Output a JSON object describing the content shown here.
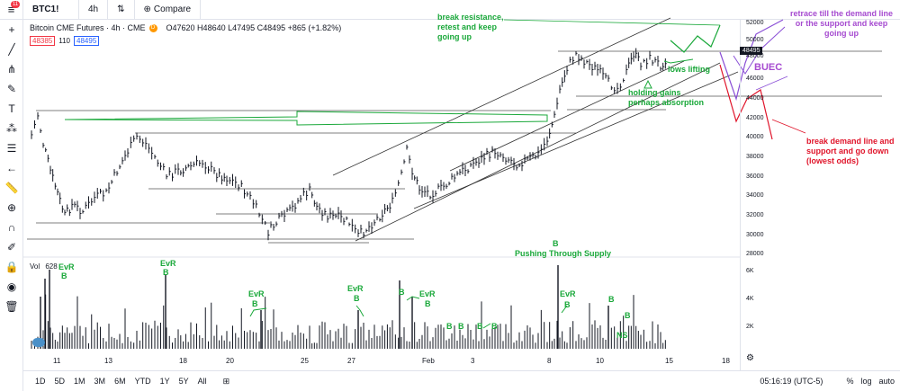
{
  "topbar": {
    "notification_count": "11",
    "symbol": "BTC1!",
    "interval": "4h",
    "compare_label": "Compare"
  },
  "legend": {
    "title": "Bitcoin CME Futures · 4h · CME",
    "ohlc": "O47620 H48640 L47495 C48495 +865 (+1.82%)",
    "bid": "48385",
    "spread": "110",
    "ask": "48495"
  },
  "volume": {
    "label": "Vol",
    "value": "628"
  },
  "price_axis": {
    "ticks": [
      "52000",
      "50000",
      "48000",
      "46000",
      "44000",
      "42000",
      "40000",
      "38000",
      "36000",
      "34000",
      "32000",
      "30000",
      "28000"
    ],
    "current": "48495"
  },
  "volume_axis": {
    "ticks": [
      "6K",
      "4K",
      "2K"
    ]
  },
  "time_axis": {
    "ticks": [
      "11",
      "13",
      "18",
      "20",
      "25",
      "27",
      "Feb",
      "3",
      "8",
      "10",
      "15",
      "18"
    ]
  },
  "bottombar": {
    "ranges": [
      "1D",
      "5D",
      "1M",
      "3M",
      "6M",
      "YTD",
      "1Y",
      "5Y",
      "All"
    ],
    "clock": "05:16:19 (UTC-5)",
    "percent": "%",
    "log": "log",
    "auto": "auto"
  },
  "annotations": {
    "break_resistance": "break resistance, retest and keep going up",
    "retrace": "retrace till the demand line or the support and keep going up",
    "buec": "BUEC",
    "lows_lifting": "lows lifting",
    "holding_gains": "holding gains perhaps absorption",
    "break_demand": "break demand line and support and go down (lowest odds)",
    "pushing_through": "Pushing Through Supply",
    "evr_1": "EvR",
    "evr_2": "EvR",
    "evr_3": "EvR",
    "evr_4": "EvR",
    "evr_5": "EvR",
    "evr_6": "EvR",
    "ns": "NS",
    "b": "B"
  },
  "colors": {
    "green": "#1aa83a",
    "purple": "#a64bd0",
    "red": "#e0142a"
  }
}
